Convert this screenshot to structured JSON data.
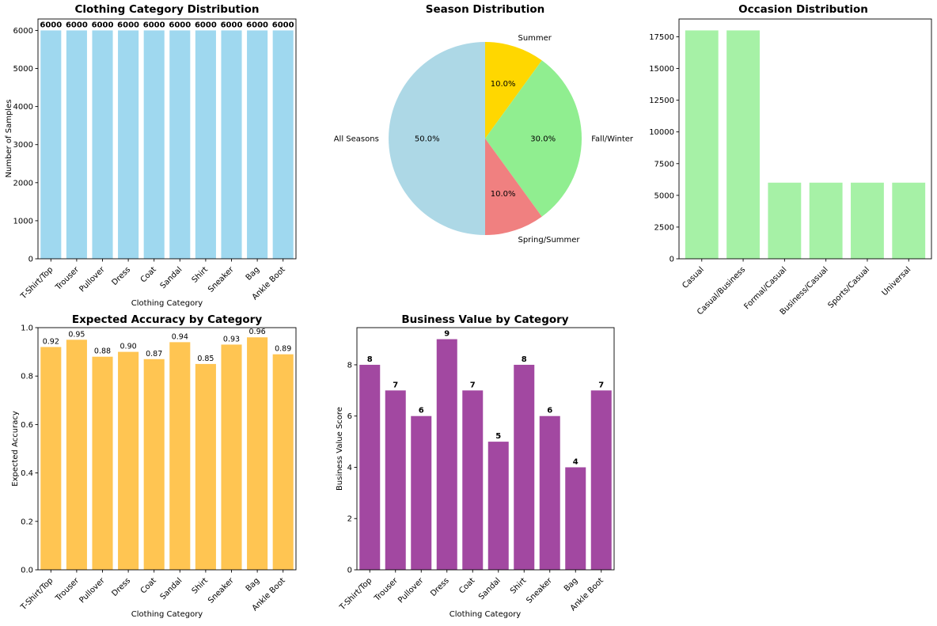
{
  "chart_data": [
    {
      "id": "category",
      "type": "bar",
      "title": "Clothing Category Distribution",
      "xlabel": "Clothing Category",
      "ylabel": "Number of Samples",
      "categories": [
        "T-Shirt/Top",
        "Trouser",
        "Pullover",
        "Dress",
        "Coat",
        "Sandal",
        "Shirt",
        "Sneaker",
        "Bag",
        "Ankle Boot"
      ],
      "values": [
        6000,
        6000,
        6000,
        6000,
        6000,
        6000,
        6000,
        6000,
        6000,
        6000
      ],
      "value_labels": [
        "6000",
        "6000",
        "6000",
        "6000",
        "6000",
        "6000",
        "6000",
        "6000",
        "6000",
        "6000"
      ],
      "ylim": [
        0,
        6300
      ],
      "yticks": [
        0,
        1000,
        2000,
        3000,
        4000,
        5000,
        6000
      ],
      "ytick_labels": [
        "0",
        "1000",
        "2000",
        "3000",
        "4000",
        "5000",
        "6000"
      ],
      "color": "#87ceeb",
      "opacity": 0.8
    },
    {
      "id": "season",
      "type": "pie",
      "title": "Season Distribution",
      "labels": [
        "Summer",
        "Fall/Winter",
        "Spring/Summer",
        "All Seasons"
      ],
      "values": [
        10.0,
        30.0,
        10.0,
        50.0
      ],
      "pct_labels": [
        "10.0%",
        "30.0%",
        "10.0%",
        "50.0%"
      ],
      "colors": [
        "#ffd700",
        "#90ee90",
        "#f08080",
        "#add8e6"
      ],
      "start_angle_deg": 90,
      "direction": "clockwise"
    },
    {
      "id": "occasion",
      "type": "bar",
      "title": "Occasion Distribution",
      "xlabel": "",
      "ylabel": "",
      "categories": [
        "Casual",
        "Casual/Business",
        "Formal/Casual",
        "Business/Casual",
        "Sports/Casual",
        "Universal"
      ],
      "values": [
        18000,
        18000,
        6000,
        6000,
        6000,
        6000
      ],
      "ylim": [
        0,
        18900
      ],
      "yticks": [
        0,
        2500,
        5000,
        7500,
        10000,
        12500,
        15000,
        17500
      ],
      "ytick_labels": [
        "0",
        "2500",
        "5000",
        "7500",
        "10000",
        "12500",
        "15000",
        "17500"
      ],
      "color": "#90ee90",
      "opacity": 0.8
    },
    {
      "id": "accuracy",
      "type": "bar",
      "title": "Expected Accuracy by Category",
      "xlabel": "Clothing Category",
      "ylabel": "Expected Accuracy",
      "categories": [
        "T-Shirt/Top",
        "Trouser",
        "Pullover",
        "Dress",
        "Coat",
        "Sandal",
        "Shirt",
        "Sneaker",
        "Bag",
        "Ankle Boot"
      ],
      "values": [
        0.92,
        0.95,
        0.88,
        0.9,
        0.87,
        0.94,
        0.85,
        0.93,
        0.96,
        0.89
      ],
      "value_labels": [
        "0.92",
        "0.95",
        "0.88",
        "0.90",
        "0.87",
        "0.94",
        "0.85",
        "0.93",
        "0.96",
        "0.89"
      ],
      "ylim": [
        0,
        1.0
      ],
      "yticks": [
        0,
        0.2,
        0.4,
        0.6,
        0.8,
        1.0
      ],
      "ytick_labels": [
        "0.0",
        "0.2",
        "0.4",
        "0.6",
        "0.8",
        "1.0"
      ],
      "color": "#ffb627",
      "opacity": 0.8
    },
    {
      "id": "business",
      "type": "bar",
      "title": "Business Value by Category",
      "xlabel": "Clothing Category",
      "ylabel": "Business Value Score",
      "categories": [
        "T-Shirt/Top",
        "Trouser",
        "Pullover",
        "Dress",
        "Coat",
        "Sandal",
        "Shirt",
        "Sneaker",
        "Bag",
        "Ankle Boot"
      ],
      "values": [
        8,
        7,
        6,
        9,
        7,
        5,
        8,
        6,
        4,
        7
      ],
      "value_labels": [
        "8",
        "7",
        "6",
        "9",
        "7",
        "5",
        "8",
        "6",
        "4",
        "7"
      ],
      "ylim": [
        0,
        9.45
      ],
      "yticks": [
        0,
        2,
        4,
        6,
        8
      ],
      "ytick_labels": [
        "0",
        "2",
        "4",
        "6",
        "8"
      ],
      "color": "#8b1a89",
      "opacity": 0.8
    }
  ]
}
